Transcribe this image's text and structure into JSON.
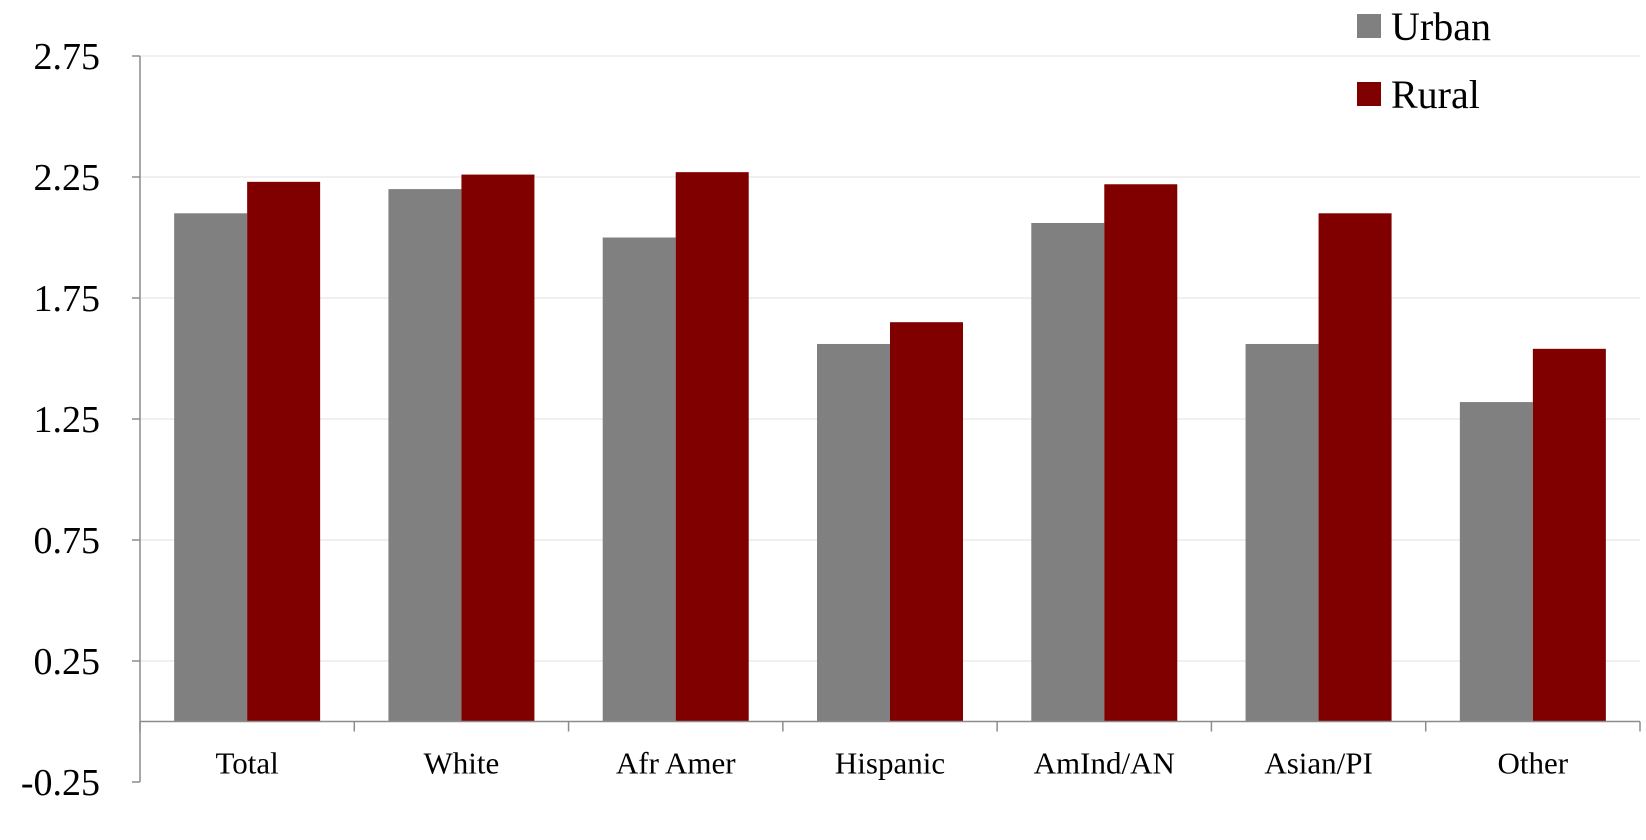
{
  "chart_data": {
    "type": "bar",
    "categories": [
      "Total",
      "White",
      "Afr Amer",
      "Hispanic",
      "AmInd/AN",
      "Asian/PI",
      "Other"
    ],
    "series": [
      {
        "name": "Urban",
        "color": "#808080",
        "values": [
          2.1,
          2.2,
          2.0,
          1.56,
          2.06,
          1.56,
          1.32
        ]
      },
      {
        "name": "Rural",
        "color": "#800000",
        "values": [
          2.23,
          2.26,
          2.27,
          1.65,
          2.22,
          2.1,
          1.54
        ]
      }
    ],
    "ylim": [
      -0.25,
      2.75
    ],
    "yticks": [
      "2.75",
      "2.25",
      "1.75",
      "1.25",
      "0.75",
      "0.25",
      "-0.25"
    ],
    "ytick_values": [
      2.75,
      2.25,
      1.75,
      1.25,
      0.75,
      0.25,
      -0.25
    ],
    "baseline": 0,
    "grid": true,
    "legend": "top-right",
    "title": "",
    "xlabel": "",
    "ylabel": ""
  }
}
